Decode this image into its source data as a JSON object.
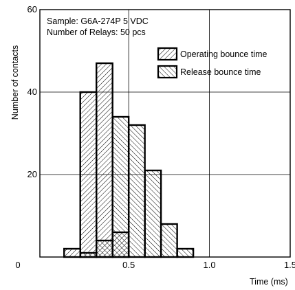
{
  "chart_data": {
    "type": "bar",
    "subtitle_lines": [
      "Sample: G6A-274P 5 VDC",
      "Number of Relays: 50 pcs"
    ],
    "xlabel": "Time (ms)",
    "ylabel": "Number of contacts",
    "xlim": [
      -0.05,
      1.5
    ],
    "ylim": [
      0,
      60
    ],
    "x_ticks": [
      {
        "value": -0.05,
        "label": "0"
      },
      {
        "value": 0.5,
        "label": "0.5"
      },
      {
        "value": 1.0,
        "label": "1.0"
      },
      {
        "value": 1.5,
        "label": "1.5"
      }
    ],
    "y_ticks": [
      {
        "value": 20,
        "label": "20"
      },
      {
        "value": 40,
        "label": "40"
      },
      {
        "value": 60,
        "label": "60"
      }
    ],
    "grid": true,
    "legend_position": "top-right",
    "bin_width": 0.1,
    "series": [
      {
        "name": "Operating bounce time",
        "pattern": "forward-hatch",
        "bins": [
          {
            "x0": 0.1,
            "x1": 0.2,
            "value": 2
          },
          {
            "x0": 0.2,
            "x1": 0.3,
            "value": 40
          },
          {
            "x0": 0.3,
            "x1": 0.4,
            "value": 47
          },
          {
            "x0": 0.4,
            "x1": 0.5,
            "value": 6
          }
        ]
      },
      {
        "name": "Release bounce time",
        "pattern": "back-hatch",
        "bins": [
          {
            "x0": 0.2,
            "x1": 0.3,
            "value": 1
          },
          {
            "x0": 0.3,
            "x1": 0.4,
            "value": 4
          },
          {
            "x0": 0.4,
            "x1": 0.5,
            "value": 34
          },
          {
            "x0": 0.5,
            "x1": 0.6,
            "value": 32
          },
          {
            "x0": 0.6,
            "x1": 0.7,
            "value": 21
          },
          {
            "x0": 0.7,
            "x1": 0.8,
            "value": 8
          },
          {
            "x0": 0.8,
            "x1": 0.9,
            "value": 2
          }
        ]
      }
    ]
  }
}
